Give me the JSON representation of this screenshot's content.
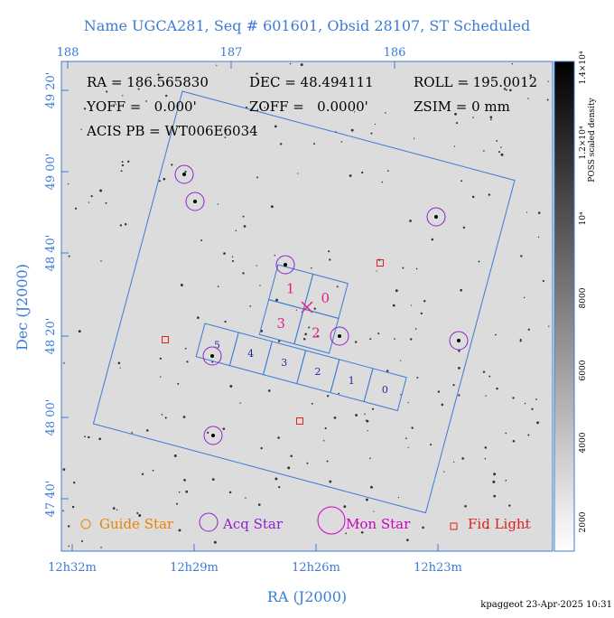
{
  "header": {
    "title": "Name UGCA281, Seq # 601601, Obsid 28107, ST Scheduled"
  },
  "axes": {
    "x_label": "RA (J2000)",
    "y_label": "Dec (J2000)",
    "bottom_ticks": [
      "12h32m",
      "12h29m",
      "12h26m",
      "12h23m"
    ],
    "top_ticks": [
      "188",
      "187",
      "186"
    ],
    "left_ticks": [
      "49 20'",
      "49 00'",
      "48 40'",
      "48 20'",
      "48 00'",
      "47 40'"
    ]
  },
  "colorbar": {
    "title": "POSS scaled density",
    "ticks": [
      "2000",
      "4000",
      "6000",
      "8000",
      "10⁴",
      "1.2×10⁴",
      "1.4×10⁴"
    ]
  },
  "info": {
    "ra": "RA = 186.565830",
    "dec": "DEC = 48.494111",
    "roll": "ROLL = 195.0012",
    "yoff": "YOFF =   0.000'",
    "zoff": "ZOFF =   0.0000'",
    "zsim": "ZSIM = 0 mm",
    "acis": "ACIS PB = WT006E6034"
  },
  "chips": {
    "i": [
      "0",
      "1",
      "2",
      "3"
    ],
    "s": [
      "0",
      "1",
      "2",
      "3",
      "4",
      "5"
    ]
  },
  "legend": [
    "Guide Star",
    "Acq Star",
    "Mon Star",
    "Fid Light"
  ],
  "footer": "kpaggeot 23-Apr-2025 10:31"
}
